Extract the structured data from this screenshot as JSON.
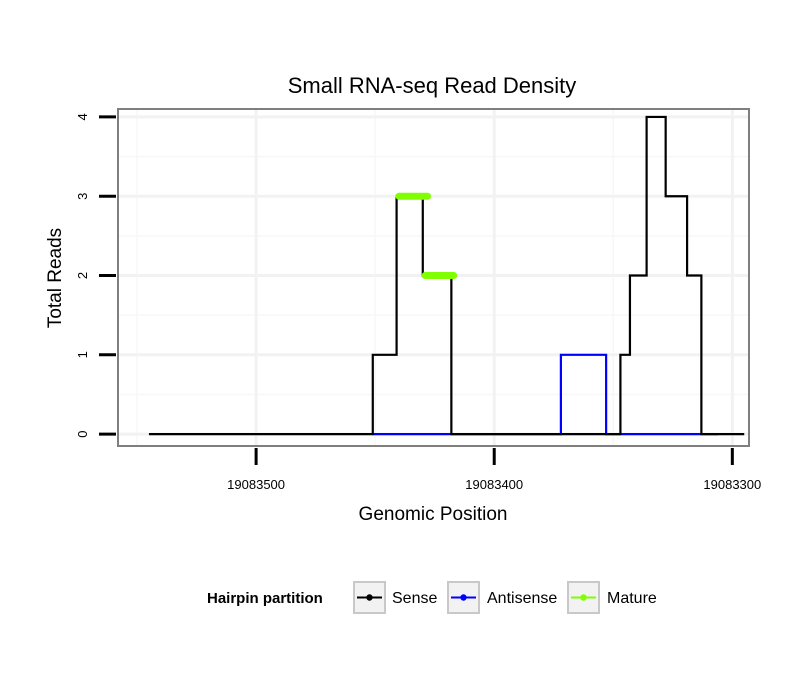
{
  "chart_data": {
    "type": "line",
    "title": "Small RNA-seq Read Density",
    "xlabel": "Genomic Position",
    "ylabel": "Total Reads",
    "x_reversed": true,
    "xlim": [
      19083558,
      19083293
    ],
    "ylim": [
      -0.15,
      4.1
    ],
    "x_ticks": [
      19083500,
      19083400,
      19083300
    ],
    "x_tick_labels": [
      "19083500",
      "19083400",
      "19083300"
    ],
    "y_ticks": [
      0,
      1,
      2,
      3,
      4
    ],
    "y_tick_labels": [
      "0",
      "1",
      "2",
      "3",
      "4"
    ],
    "grid": true,
    "legend": {
      "title": "Hairpin partition",
      "position": "bottom",
      "entries": [
        "Sense",
        "Antisense",
        "Mature"
      ]
    },
    "series": [
      {
        "name": "Sense",
        "color": "#000000",
        "x": [
          19083545,
          19083451,
          19083451,
          19083441,
          19083441,
          19083430,
          19083430,
          19083418,
          19083418,
          19083405,
          19083405,
          19083352,
          19083352,
          19083347,
          19083347,
          19083343,
          19083343,
          19083340,
          19083340,
          19083336,
          19083336,
          19083328,
          19083328,
          19083319,
          19083319,
          19083313,
          19083313,
          19083306,
          19083306,
          19083295
        ],
        "y": [
          0,
          0,
          1,
          1,
          3,
          3,
          2,
          2,
          0,
          0,
          0,
          0,
          0,
          0,
          1,
          1,
          2,
          2,
          2,
          2,
          4,
          4,
          3,
          3,
          2,
          2,
          0,
          0,
          0,
          0
        ]
      },
      {
        "name": "Antisense",
        "color": "#0000ff",
        "x": [
          19083451,
          19083405,
          19083405,
          19083372,
          19083372,
          19083353,
          19083353,
          19083306
        ],
        "y": [
          0,
          0,
          0,
          0,
          1,
          1,
          0,
          0
        ]
      },
      {
        "name": "Mature",
        "color": "#7fff00",
        "segments": [
          {
            "x": [
              19083440,
              19083428
            ],
            "y": [
              3,
              3
            ]
          },
          {
            "x": [
              19083429,
              19083417
            ],
            "y": [
              2,
              2
            ]
          }
        ]
      }
    ]
  }
}
